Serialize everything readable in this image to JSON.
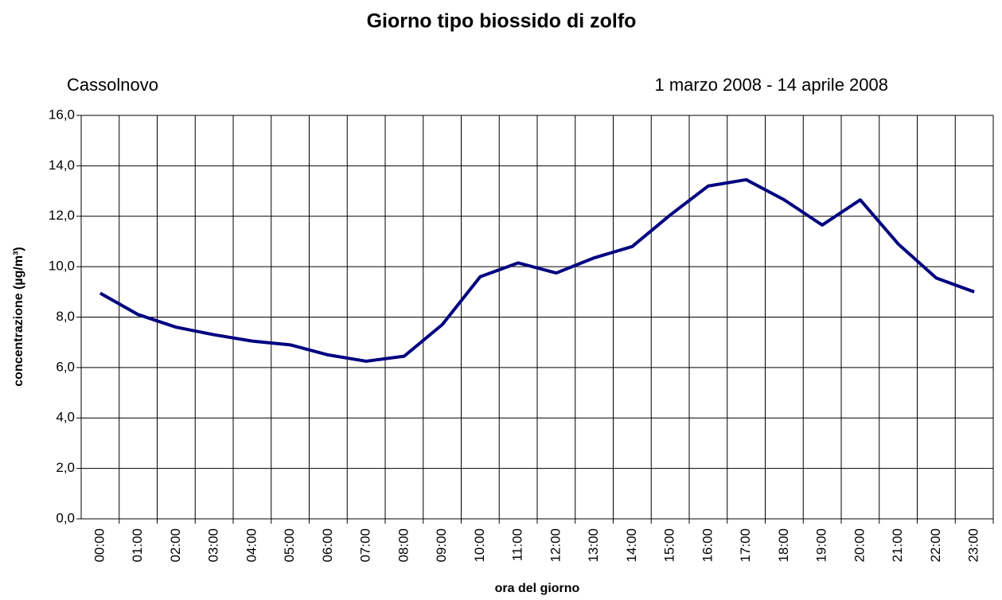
{
  "chart_data": {
    "type": "line",
    "title": "Giorno tipo biossido di zolfo",
    "subtitle_left": "Cassolnovo",
    "subtitle_right": "1 marzo 2008 - 14 aprile 2008",
    "x_label": "ora del giorno",
    "y_label": "concentrazione (µg/m³)",
    "categories": [
      "00:00",
      "01:00",
      "02:00",
      "03:00",
      "04:00",
      "05:00",
      "06:00",
      "07:00",
      "08:00",
      "09:00",
      "10:00",
      "11:00",
      "12:00",
      "13:00",
      "14:00",
      "15:00",
      "16:00",
      "17:00",
      "18:00",
      "19:00",
      "20:00",
      "21:00",
      "22:00",
      "23:00"
    ],
    "series": [
      {
        "color": "#000080",
        "values": [
          8.95,
          8.1,
          7.6,
          7.3,
          7.05,
          6.9,
          6.5,
          6.25,
          6.45,
          7.7,
          9.6,
          10.15,
          9.75,
          10.35,
          10.8,
          12.05,
          13.2,
          13.45,
          12.65,
          11.65,
          12.65,
          10.9,
          9.55,
          9.0
        ]
      }
    ],
    "ylim": [
      0,
      16
    ],
    "yticks": [
      {
        "value": 0,
        "label": "0,0"
      },
      {
        "value": 2,
        "label": "2,0"
      },
      {
        "value": 4,
        "label": "4,0"
      },
      {
        "value": 6,
        "label": "6,0"
      },
      {
        "value": 8,
        "label": "8,0"
      },
      {
        "value": 10,
        "label": "10,0"
      },
      {
        "value": 12,
        "label": "12,0"
      },
      {
        "value": 14,
        "label": "14,0"
      },
      {
        "value": 16,
        "label": "16,0"
      }
    ],
    "grid": true
  }
}
